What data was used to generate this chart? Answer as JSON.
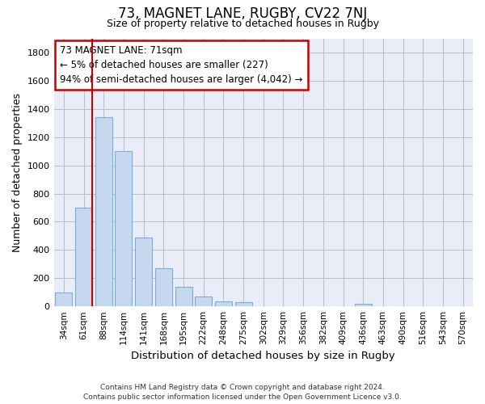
{
  "title": "73, MAGNET LANE, RUGBY, CV22 7NJ",
  "subtitle": "Size of property relative to detached houses in Rugby",
  "xlabel": "Distribution of detached houses by size in Rugby",
  "ylabel": "Number of detached properties",
  "footer_line1": "Contains HM Land Registry data © Crown copyright and database right 2024.",
  "footer_line2": "Contains public sector information licensed under the Open Government Licence v3.0.",
  "categories": [
    "34sqm",
    "61sqm",
    "88sqm",
    "114sqm",
    "141sqm",
    "168sqm",
    "195sqm",
    "222sqm",
    "248sqm",
    "275sqm",
    "302sqm",
    "329sqm",
    "356sqm",
    "382sqm",
    "409sqm",
    "436sqm",
    "463sqm",
    "490sqm",
    "516sqm",
    "543sqm",
    "570sqm"
  ],
  "bar_values": [
    100,
    700,
    1340,
    1100,
    490,
    270,
    140,
    70,
    35,
    30,
    0,
    0,
    0,
    0,
    0,
    20,
    0,
    0,
    0,
    0,
    0
  ],
  "bar_color": "#c5d8f0",
  "bar_edgecolor": "#7aaed6",
  "grid_color": "#bbbbcc",
  "bg_color": "#e8edf8",
  "annotation_line1": "73 MAGNET LANE: 71sqm",
  "annotation_line2": "← 5% of detached houses are smaller (227)",
  "annotation_line3": "94% of semi-detached houses are larger (4,042) →",
  "annotation_box_edgecolor": "#cc0000",
  "vline_color": "#cc0000",
  "vline_x_idx": 1,
  "ylim": [
    0,
    1900
  ],
  "yticks": [
    0,
    200,
    400,
    600,
    800,
    1000,
    1200,
    1400,
    1600,
    1800
  ]
}
